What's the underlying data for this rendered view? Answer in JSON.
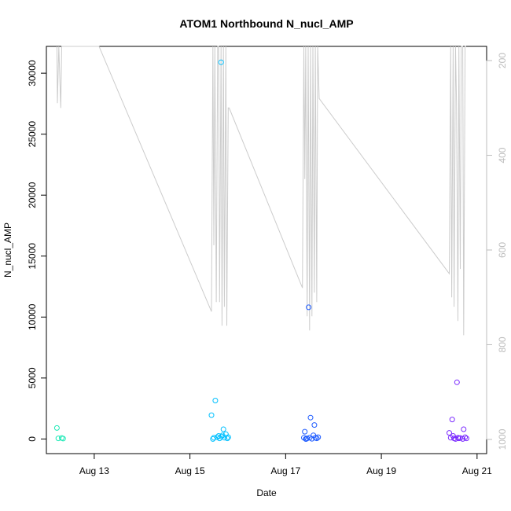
{
  "chart_data": {
    "type": "scatter",
    "title": "ATOM1 Northbound N_nucl_AMP",
    "xlabel": "Date",
    "ylabel": "N_nucl_AMP",
    "x_ticks": [
      {
        "day": 13,
        "label": "Aug 13"
      },
      {
        "day": 15,
        "label": "Aug 15"
      },
      {
        "day": 17,
        "label": "Aug 17"
      },
      {
        "day": 19,
        "label": "Aug 19"
      },
      {
        "day": 21,
        "label": "Aug 21"
      }
    ],
    "xlim": [
      12.0,
      21.2
    ],
    "ylim": [
      -1200,
      32200
    ],
    "y_ticks": [
      0,
      5000,
      10000,
      15000,
      20000,
      25000,
      30000
    ],
    "y2_ticks": [
      200,
      400,
      600,
      800,
      1000
    ],
    "y2lim": [
      1030,
      170
    ],
    "y2_reversed": true,
    "colors": {
      "line": "#cccccc",
      "right_axis": "#bdbdbd",
      "axis": "#000000"
    },
    "series": [
      {
        "color": "#1de9b6",
        "x": [
          12.22,
          12.25,
          12.32,
          12.35
        ],
        "y": [
          900,
          50,
          80,
          30
        ]
      },
      {
        "color": "#00c0ff",
        "x": [
          15.45,
          15.5,
          15.53,
          15.57,
          15.6,
          15.62,
          15.65,
          15.68,
          15.7,
          15.72,
          15.75,
          15.78,
          15.8,
          15.48,
          15.66
        ],
        "y": [
          1950,
          100,
          3150,
          150,
          250,
          50,
          30900,
          300,
          800,
          100,
          400,
          50,
          150,
          0,
          200
        ]
      },
      {
        "color": "#1e5bff",
        "x": [
          17.38,
          17.4,
          17.42,
          17.45,
          17.48,
          17.5,
          17.52,
          17.55,
          17.58,
          17.6,
          17.62,
          17.65,
          17.68,
          17.43
        ],
        "y": [
          100,
          600,
          0,
          50,
          10800,
          100,
          1750,
          20,
          300,
          1150,
          100,
          50,
          150,
          0
        ]
      },
      {
        "color": "#7b2bff",
        "x": [
          20.42,
          20.45,
          20.48,
          20.52,
          20.55,
          20.58,
          20.6,
          20.62,
          20.65,
          20.7,
          20.72,
          20.75,
          20.78,
          20.5
        ],
        "y": [
          500,
          100,
          1600,
          50,
          0,
          4650,
          100,
          50,
          80,
          0,
          800,
          150,
          50,
          250
        ]
      }
    ],
    "line_series": {
      "axis": "right",
      "x": [
        12.22,
        12.23,
        12.26,
        12.3,
        12.32,
        12.35,
        12.4,
        13.1,
        15.45,
        15.48,
        15.5,
        15.52,
        15.55,
        15.58,
        15.6,
        15.62,
        15.65,
        15.67,
        15.7,
        15.72,
        15.75,
        15.77,
        15.8,
        15.82,
        17.35,
        17.38,
        17.4,
        17.42,
        17.45,
        17.47,
        17.5,
        17.52,
        17.55,
        17.57,
        17.6,
        17.62,
        17.65,
        17.67,
        17.7,
        20.42,
        20.45,
        20.47,
        20.5,
        20.52,
        20.55,
        20.57,
        20.6,
        20.62,
        20.65,
        20.67,
        20.7,
        20.72,
        20.75,
        20.77
      ],
      "y": [
        170,
        290,
        170,
        300,
        170,
        170,
        170,
        170,
        730,
        170,
        590,
        170,
        710,
        170,
        170,
        710,
        170,
        760,
        170,
        720,
        170,
        760,
        300,
        300,
        680,
        170,
        450,
        170,
        740,
        170,
        770,
        170,
        740,
        170,
        690,
        170,
        710,
        170,
        280,
        650,
        170,
        700,
        170,
        720,
        170,
        290,
        750,
        170,
        640,
        170,
        170,
        780,
        170,
        170
      ]
    }
  }
}
